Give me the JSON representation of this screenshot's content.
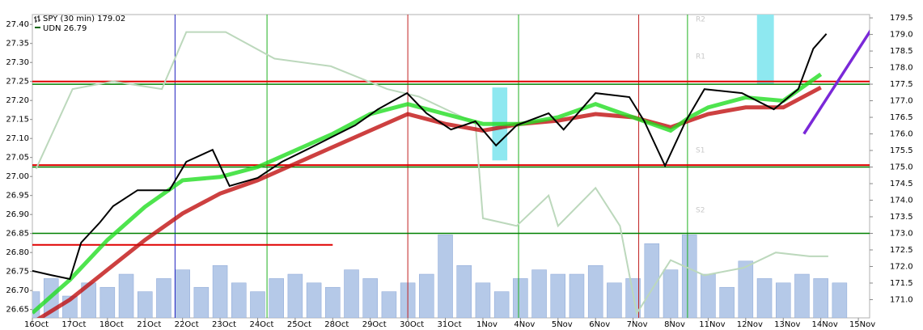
{
  "chart_data": {
    "type": "line",
    "legend": {
      "position": "upper left"
    },
    "categories": [
      "16Oct",
      "17Oct",
      "18Oct",
      "21Oct",
      "22Oct",
      "23Oct",
      "24Oct",
      "25Oct",
      "28Oct",
      "29Oct",
      "30Oct",
      "31Oct",
      "1Nov",
      "4Nov",
      "5Nov",
      "6Nov",
      "7Nov",
      "8Nov",
      "11Nov",
      "12Nov",
      "13Nov",
      "14Nov",
      "15Nov"
    ],
    "xlim": [
      0,
      22.3
    ],
    "ylim": [
      26.628,
      27.426
    ],
    "yticks": [
      26.65,
      {
        "value": 26.7,
        "label": "26.70"
      },
      26.75,
      {
        "value": 26.8,
        "label": "26.80"
      },
      26.85,
      {
        "value": 26.9,
        "label": "26.90"
      },
      26.95,
      {
        "value": 27.0,
        "label": "27.00"
      },
      27.05,
      {
        "value": 27.1,
        "label": "27.10"
      },
      27.15,
      {
        "value": 27.2,
        "label": "27.20"
      },
      27.25,
      {
        "value": 27.3,
        "label": "27.30"
      },
      27.35,
      {
        "value": 27.4,
        "label": "27.40"
      }
    ],
    "y2lim": [
      170.45,
      179.6
    ],
    "y2ticks": [
      {
        "value": 171,
        "label": "171.0"
      },
      171.5,
      {
        "value": 172,
        "label": "172.0"
      },
      172.5,
      {
        "value": 173,
        "label": "173.0"
      },
      173.5,
      {
        "value": 174,
        "label": "174.0"
      },
      174.5,
      {
        "value": 175,
        "label": "175.0"
      },
      175.5,
      {
        "value": 176,
        "label": "176.0"
      },
      176.5,
      {
        "value": 177,
        "label": "177.0"
      },
      177.5,
      {
        "value": 178,
        "label": "178.0"
      },
      178.5,
      {
        "value": 179,
        "label": "179.0"
      },
      179.5
    ],
    "series": [
      {
        "name": "SPY (30 min) 179.02",
        "color": "#000000",
        "axis": "y2",
        "x": [
          0,
          0.5,
          1,
          1.3,
          1.8,
          2.15,
          2.8,
          3.65,
          4.1,
          4.8,
          5.25,
          6.0,
          6.65,
          7.3,
          7.95,
          8.6,
          9.2,
          9.98,
          10.5,
          11.15,
          11.8,
          12.35,
          12.9,
          13.75,
          14.15,
          15.0,
          15.9,
          16.3,
          16.85,
          17.4,
          17.9,
          18.9,
          19.75,
          20.4,
          20.8,
          21.15
        ],
        "values": [
          171.87,
          171.74,
          171.62,
          172.72,
          173.33,
          173.82,
          174.3,
          174.3,
          175.16,
          175.52,
          174.43,
          174.67,
          175.16,
          175.52,
          175.89,
          176.26,
          176.74,
          177.23,
          176.62,
          176.13,
          176.38,
          175.65,
          176.26,
          176.62,
          176.13,
          177.23,
          177.11,
          176.38,
          175.04,
          176.38,
          177.35,
          177.23,
          176.74,
          177.35,
          178.57,
          179.02
        ]
      },
      {
        "name": "UDN 26.79",
        "color": "#bcd8bc",
        "label_color": "#006400",
        "axis": "y",
        "x": [
          0.1,
          1.07,
          2.15,
          3.45,
          4.1,
          5.15,
          6.45,
          7.95,
          9.45,
          10.3,
          11.8,
          12.0,
          12.9,
          13.75,
          14.0,
          15.0,
          15.65,
          16.1,
          17.0,
          17.9,
          18.95,
          19.8,
          20.7,
          21.2
        ],
        "values": [
          27.02,
          27.23,
          27.25,
          27.23,
          27.38,
          27.38,
          27.31,
          27.29,
          27.23,
          27.21,
          27.14,
          26.89,
          26.87,
          26.95,
          26.87,
          26.97,
          26.87,
          26.64,
          26.78,
          26.74,
          26.76,
          26.8,
          26.79,
          26.79
        ]
      }
    ],
    "ribbons": [
      {
        "color": "#c01010",
        "axis": "y2",
        "x": [
          0,
          1,
          2,
          3,
          4,
          5,
          6,
          7,
          8,
          9,
          10,
          11,
          12,
          13,
          14,
          15,
          16,
          17,
          18,
          19,
          20,
          21
        ],
        "values": [
          170.3,
          171.0,
          171.9,
          172.8,
          173.6,
          174.2,
          174.6,
          175.1,
          175.6,
          176.1,
          176.6,
          176.3,
          176.1,
          176.3,
          176.4,
          176.6,
          176.5,
          176.2,
          176.6,
          176.8,
          176.8,
          177.4
        ]
      },
      {
        "color": "#22dd22",
        "axis": "y2",
        "x": [
          0,
          1,
          2,
          3,
          4,
          5,
          6,
          7,
          8,
          9,
          10,
          11,
          12,
          13,
          14,
          15,
          16,
          17,
          17.5,
          18,
          19,
          20,
          21
        ],
        "values": [
          170.6,
          171.6,
          172.8,
          173.8,
          174.6,
          174.7,
          175.0,
          175.5,
          176.0,
          176.6,
          176.9,
          176.6,
          176.3,
          176.3,
          176.5,
          176.9,
          176.5,
          176.1,
          176.5,
          176.8,
          177.1,
          177.0,
          177.8
        ]
      }
    ],
    "volume": {
      "color": "#b5c9e8",
      "vlim": [
        0,
        100
      ],
      "x": [
        0,
        0.5,
        1,
        1.5,
        2,
        2.5,
        3,
        3.5,
        4,
        4.5,
        5,
        5.5,
        6,
        6.5,
        7,
        7.5,
        8,
        8.5,
        9,
        9.5,
        10,
        10.5,
        11,
        11.5,
        12,
        12.5,
        13,
        13.5,
        14,
        14.5,
        15,
        15.5,
        16,
        16.5,
        17,
        17.5,
        18,
        18.5,
        19,
        19.5,
        20,
        20.5,
        21,
        21.5
      ],
      "values": [
        30,
        45,
        25,
        40,
        35,
        50,
        30,
        45,
        55,
        35,
        60,
        40,
        30,
        45,
        50,
        40,
        35,
        55,
        45,
        30,
        40,
        50,
        95,
        60,
        40,
        30,
        45,
        55,
        50,
        50,
        60,
        40,
        45,
        85,
        55,
        95,
        50,
        35,
        65,
        45,
        40,
        50,
        45,
        40
      ]
    },
    "hlines": [
      {
        "value": 27.25,
        "axis": "y",
        "color": "#e00000"
      },
      {
        "value": 27.03,
        "axis": "y",
        "color": "#e00000"
      },
      {
        "value": 26.82,
        "axis": "y",
        "color": "#e00000",
        "to": 8.0
      },
      {
        "value": 177.5,
        "axis": "y2",
        "color": "#008000"
      },
      {
        "value": 175.0,
        "axis": "y2",
        "color": "#008000"
      },
      {
        "value": 173.0,
        "axis": "y2",
        "color": "#008000"
      }
    ],
    "vlines": [
      {
        "x": 3.8,
        "color": "#2020c0"
      },
      {
        "x": 6.25,
        "color": "#20b020"
      },
      {
        "x": 10.0,
        "color": "#c02020"
      },
      {
        "x": 12.95,
        "color": "#20b020"
      },
      {
        "x": 16.15,
        "color": "#c02020"
      },
      {
        "x": 17.45,
        "color": "#20b020"
      }
    ],
    "boxes": [
      {
        "color": "#8ee8f0",
        "x0": 12.25,
        "x1": 12.65,
        "y0": 175.2,
        "y1": 177.4
      },
      {
        "color": "#8ee8f0",
        "x0": 19.3,
        "x1": 19.75,
        "y0": 177.5,
        "y1": 179.6
      }
    ],
    "trendline": {
      "color": "#7a28d8",
      "x": [
        20.55,
        22.6
      ],
      "values": [
        176.0,
        179.6
      ]
    },
    "annotations": [
      "R2",
      "R1",
      "S1",
      "S2"
    ]
  }
}
